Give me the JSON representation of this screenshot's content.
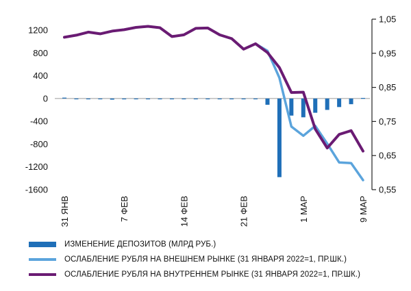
{
  "chart_data": {
    "type": "bar+line",
    "left_axis": {
      "ticks": [
        1200,
        800,
        400,
        0,
        -400,
        -800,
        -1200,
        -1600
      ],
      "ylim": [
        -1600,
        1400
      ]
    },
    "right_axis": {
      "ticks": [
        "1,05",
        "0,95",
        "0,85",
        "0,75",
        "0,65",
        "0,55"
      ],
      "tick_values": [
        1.05,
        0.95,
        0.85,
        0.75,
        0.65,
        0.55
      ],
      "ylim": [
        0.55,
        1.05
      ]
    },
    "x_ticks": [
      {
        "label": "31 ЯНВ",
        "index": 0
      },
      {
        "label": "7 ФЕВ",
        "index": 5
      },
      {
        "label": "14 ФЕВ",
        "index": 10
      },
      {
        "label": "21 ФЕВ",
        "index": 15
      },
      {
        "label": "1 МАР",
        "index": 20
      },
      {
        "label": "9 МАР",
        "index": 25
      }
    ],
    "n_points": 26,
    "series": [
      {
        "name": "ИЗМЕНЕНИЕ ДЕПОЗИТОВ (МЛРД РУБ.)",
        "type": "bar",
        "axis": "left",
        "color": "#1f6fb8",
        "values": [
          15,
          0,
          0,
          -10,
          -20,
          -15,
          0,
          -5,
          -5,
          -10,
          -5,
          0,
          0,
          0,
          -10,
          -10,
          -5,
          -110,
          -1380,
          -300,
          -330,
          -250,
          -200,
          -150,
          -100,
          10
        ]
      },
      {
        "name": "ОСЛАБЛЕНИЕ РУБЛЯ НА ВНЕШНЕМ РЫНКЕ (31 ЯНВАРЯ 2022=1, ПР.ШК.)",
        "type": "line",
        "axis": "right",
        "color": "#5ba4dc",
        "values": [
          0.997,
          1.003,
          1.012,
          1.007,
          1.015,
          1.019,
          1.026,
          1.029,
          1.025,
          0.999,
          1.004,
          1.023,
          1.024,
          1.004,
          0.993,
          0.962,
          0.978,
          0.957,
          0.878,
          0.735,
          0.708,
          0.737,
          0.685,
          0.63,
          0.628,
          0.578
        ]
      },
      {
        "name": "ОСЛАБЛЕНИЕ РУБЛЯ НА ВНУТРЕННЕМ РЫНКЕ (31 ЯНВАРЯ 2022=1, ПР.ШК.)",
        "type": "line",
        "axis": "right",
        "color": "#6a1b73",
        "values": [
          0.997,
          1.003,
          1.012,
          1.007,
          1.015,
          1.019,
          1.026,
          1.029,
          1.025,
          0.999,
          1.004,
          1.023,
          1.024,
          1.004,
          0.993,
          0.962,
          0.978,
          0.952,
          0.908,
          0.835,
          0.836,
          0.728,
          0.672,
          0.712,
          0.723,
          0.663
        ]
      }
    ]
  }
}
